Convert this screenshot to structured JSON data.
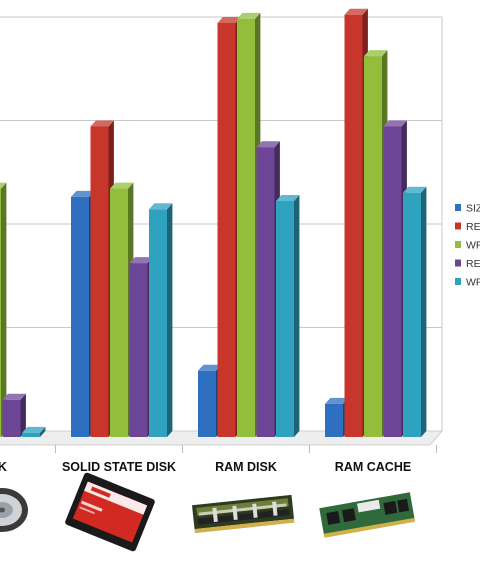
{
  "chart_data": {
    "type": "bar",
    "title": "",
    "xlabel": "",
    "ylabel": "",
    "ylim": [
      0,
      100
    ],
    "grid": true,
    "legend_position": "right",
    "categories": [
      "DISK",
      "SOLID STATE DISK",
      "RAM DISK",
      "RAM CACHE"
    ],
    "series": [
      {
        "name": "SIZ",
        "color": "#2E6FC0",
        "values": [
          null,
          58,
          16,
          8
        ]
      },
      {
        "name": "RE",
        "color": "#C8352B",
        "values": [
          null,
          75,
          100,
          102
        ]
      },
      {
        "name": "WR",
        "color": "#92BE3B",
        "values": [
          60,
          60,
          101,
          92
        ]
      },
      {
        "name": "RE",
        "color": "#6D4596",
        "values": [
          9,
          42,
          70,
          75
        ]
      },
      {
        "name": "WR",
        "color": "#2EA2BF",
        "values": [
          1,
          55,
          57,
          59
        ]
      }
    ],
    "images": [
      "hard-disk-drive",
      "solid-state-drive",
      "ram-module-heatsink",
      "ram-module"
    ]
  }
}
